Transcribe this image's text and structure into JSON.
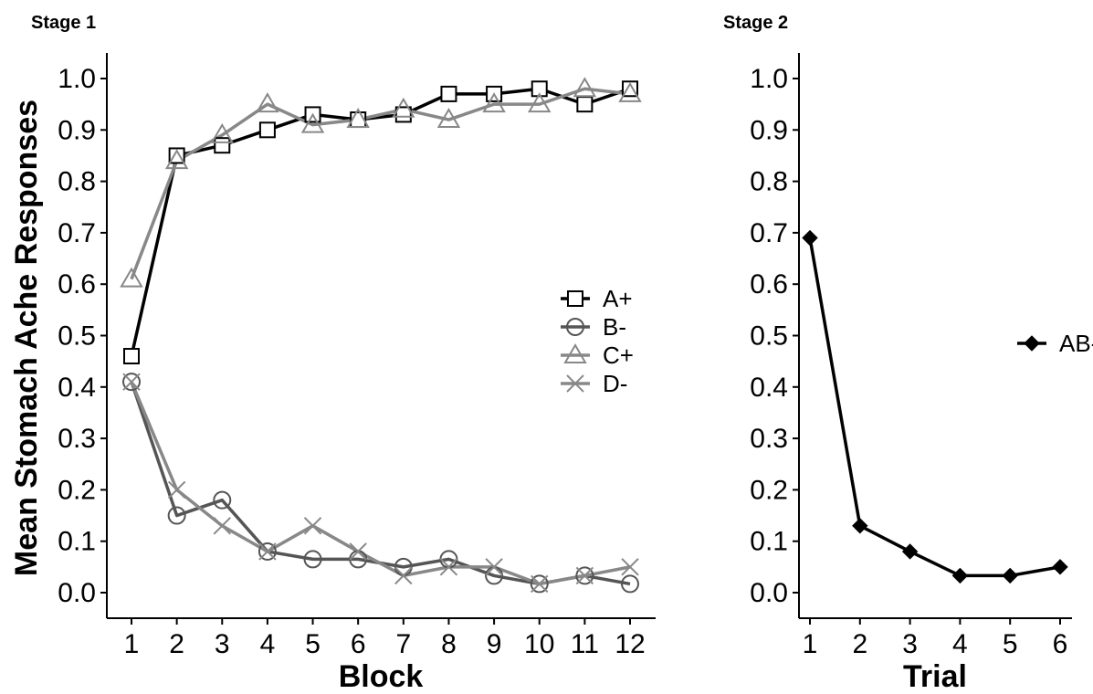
{
  "ylabel": "Mean Stomach Ache Responses",
  "colors": {
    "dark": "#000000",
    "mid": "#555555",
    "light": "#888888",
    "marker_fill": "#ffffff"
  },
  "chart_data": [
    {
      "type": "line",
      "title": "Stage 1",
      "xlabel": "Block",
      "ylabel": "Mean Stomach Ache Responses",
      "x": [
        1,
        2,
        3,
        4,
        5,
        6,
        7,
        8,
        9,
        10,
        11,
        12
      ],
      "xlim": [
        1,
        12
      ],
      "ylim": [
        0.0,
        1.0
      ],
      "yticks": [
        "0.0",
        "0.1",
        "0.2",
        "0.3",
        "0.4",
        "0.5",
        "0.6",
        "0.7",
        "0.8",
        "0.9",
        "1.0"
      ],
      "grid": false,
      "legend_position": "right",
      "series": [
        {
          "name": "A+",
          "marker": "square",
          "color": "#000000",
          "values": [
            0.46,
            0.85,
            0.87,
            0.9,
            0.93,
            0.92,
            0.93,
            0.97,
            0.97,
            0.98,
            0.95,
            0.98
          ]
        },
        {
          "name": "B-",
          "marker": "circle",
          "color": "#555555",
          "values": [
            0.41,
            0.15,
            0.18,
            0.08,
            0.065,
            0.065,
            0.05,
            0.065,
            0.033,
            0.017,
            0.033,
            0.017
          ]
        },
        {
          "name": "C+",
          "marker": "triangle",
          "color": "#888888",
          "values": [
            0.61,
            0.84,
            0.89,
            0.95,
            0.91,
            0.92,
            0.94,
            0.92,
            0.95,
            0.95,
            0.98,
            0.97
          ]
        },
        {
          "name": "D-",
          "marker": "cross",
          "color": "#888888",
          "values": [
            0.41,
            0.2,
            0.13,
            0.08,
            0.13,
            0.08,
            0.033,
            0.05,
            0.05,
            0.017,
            0.033,
            0.05
          ]
        }
      ]
    },
    {
      "type": "line",
      "title": "Stage 2",
      "xlabel": "Trial",
      "x": [
        1,
        2,
        3,
        4,
        5,
        6
      ],
      "xlim": [
        1,
        6
      ],
      "ylim": [
        0.0,
        1.0
      ],
      "yticks": [
        "0.0",
        "0.1",
        "0.2",
        "0.3",
        "0.4",
        "0.5",
        "0.6",
        "0.7",
        "0.8",
        "0.9",
        "1.0"
      ],
      "grid": false,
      "legend_position": "right",
      "series": [
        {
          "name": "AB-",
          "marker": "diamond",
          "color": "#000000",
          "values": [
            0.69,
            0.13,
            0.08,
            0.033,
            0.033,
            0.05
          ]
        }
      ]
    }
  ]
}
